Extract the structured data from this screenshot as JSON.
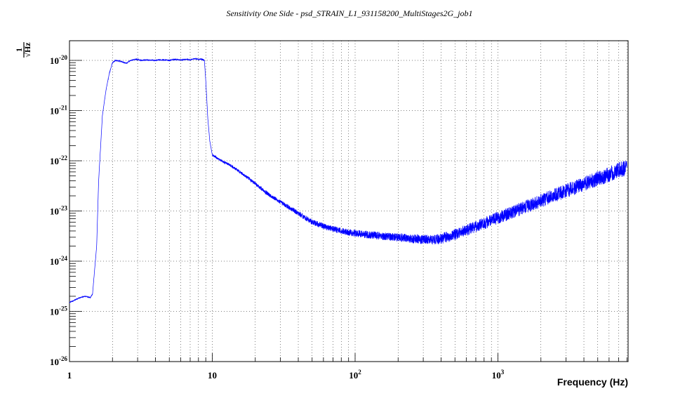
{
  "chart_data": {
    "type": "line",
    "title": "Sensitivity One Side - psd_STRAIN_L1_931158200_MultiStages2G_job1",
    "xlabel": "Frequency (Hz)",
    "ylabel_numerator": "1",
    "ylabel_denominator": "√Hz",
    "x_scale": "log",
    "y_scale": "log",
    "xlim": [
      1,
      8000
    ],
    "ylim": [
      1e-26,
      2e-20
    ],
    "grid": true,
    "x_ticks": [
      {
        "base": "1",
        "exp": "",
        "value": 1
      },
      {
        "base": "10",
        "exp": "",
        "value": 10
      },
      {
        "base": "10",
        "exp": "2",
        "value": 100
      },
      {
        "base": "10",
        "exp": "3",
        "value": 1000
      }
    ],
    "y_ticks": [
      {
        "base": "10",
        "exp": "-20",
        "value": 1e-20
      },
      {
        "base": "10",
        "exp": "-21",
        "value": 1e-21
      },
      {
        "base": "10",
        "exp": "-22",
        "value": 1e-22
      },
      {
        "base": "10",
        "exp": "-23",
        "value": 1e-23
      },
      {
        "base": "10",
        "exp": "-24",
        "value": 1e-24
      },
      {
        "base": "10",
        "exp": "-25",
        "value": 1e-25
      },
      {
        "base": "10",
        "exp": "-26",
        "value": 1e-26
      }
    ],
    "line_color": "#0000ff",
    "series": [
      {
        "x": [
          1,
          1.1,
          1.2,
          1.3,
          1.4,
          1.45,
          1.55,
          1.6,
          1.7,
          1.8,
          1.9,
          2.0,
          2.1,
          2.3,
          2.5,
          2.7,
          2.9,
          3.2,
          3.5,
          4.0,
          4.5,
          5.0,
          5.5,
          6.0,
          6.5,
          7.0,
          7.5,
          8.0,
          8.5,
          8.8,
          9.0,
          9.3,
          9.6,
          10,
          10.5,
          11,
          12,
          13,
          15,
          17,
          20,
          25,
          30,
          40,
          50,
          60,
          70,
          80,
          100,
          150,
          200,
          250,
          300,
          350,
          400,
          500,
          700,
          1000,
          1500,
          2000,
          3000,
          4000,
          5000,
          6000,
          8000
        ],
        "y": [
          1.5e-25,
          1.7e-25,
          1.9e-25,
          2e-25,
          1.9e-25,
          2.2e-25,
          2e-24,
          4e-23,
          8e-22,
          2.5e-21,
          5.5e-21,
          9e-21,
          1e-20,
          9.5e-21,
          8.8e-21,
          1e-20,
          1.05e-20,
          1e-20,
          1.02e-20,
          1e-20,
          1.03e-20,
          1e-20,
          1.05e-20,
          1.02e-20,
          1.05e-20,
          1.03e-20,
          1.08e-20,
          1.05e-20,
          1.05e-20,
          1e-20,
          4e-21,
          7e-22,
          2.5e-22,
          1.3e-22,
          1.2e-22,
          1.1e-22,
          9.5e-23,
          8.5e-23,
          6.5e-23,
          5e-23,
          3.5e-23,
          2.1e-23,
          1.5e-23,
          9e-24,
          6e-24,
          5e-24,
          4.4e-24,
          4e-24,
          3.6e-24,
          3.2e-24,
          3e-24,
          2.8e-24,
          2.7e-24,
          2.7e-24,
          2.8e-24,
          3.4e-24,
          4.9e-24,
          7.3e-24,
          1.15e-23,
          1.6e-23,
          2.5e-23,
          3.4e-23,
          4.4e-23,
          5.3e-23,
          7.5e-23
        ]
      }
    ]
  }
}
